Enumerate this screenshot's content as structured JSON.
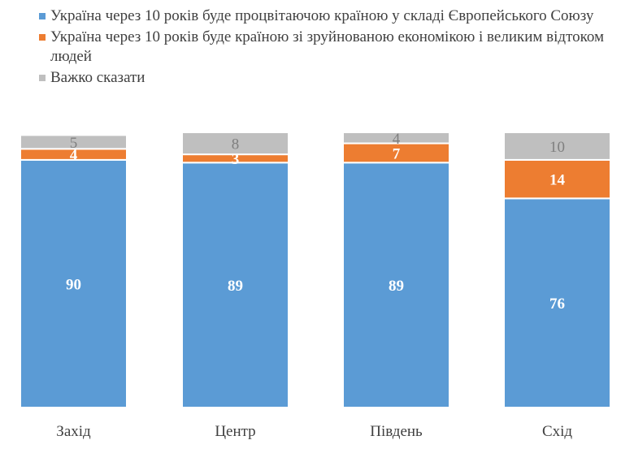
{
  "chart_data": {
    "type": "bar",
    "stacked": true,
    "categories": [
      "Захід",
      "Центр",
      "Південь",
      "Схід"
    ],
    "series": [
      {
        "name": "Україна через 10 років буде процвітаючою країною у складі Європейського Союзу",
        "color": "#5B9BD5",
        "label_color": "#FFFFFF",
        "values": [
          90,
          89,
          89,
          76
        ]
      },
      {
        "name": "Україна через 10 років буде країною зі зруйнованою економікою і великим відтоком людей",
        "color": "#ED7D31",
        "label_color": "#FFFFFF",
        "values": [
          4,
          3,
          7,
          14
        ]
      },
      {
        "name": "Важко сказати",
        "color": "#BFBFBF",
        "label_color": "#7F7F7F",
        "values": [
          5,
          8,
          4,
          10
        ]
      }
    ],
    "ylim": [
      0,
      100
    ],
    "legend": "top-left",
    "grid": false,
    "title": "",
    "xlabel": "",
    "ylabel": ""
  }
}
